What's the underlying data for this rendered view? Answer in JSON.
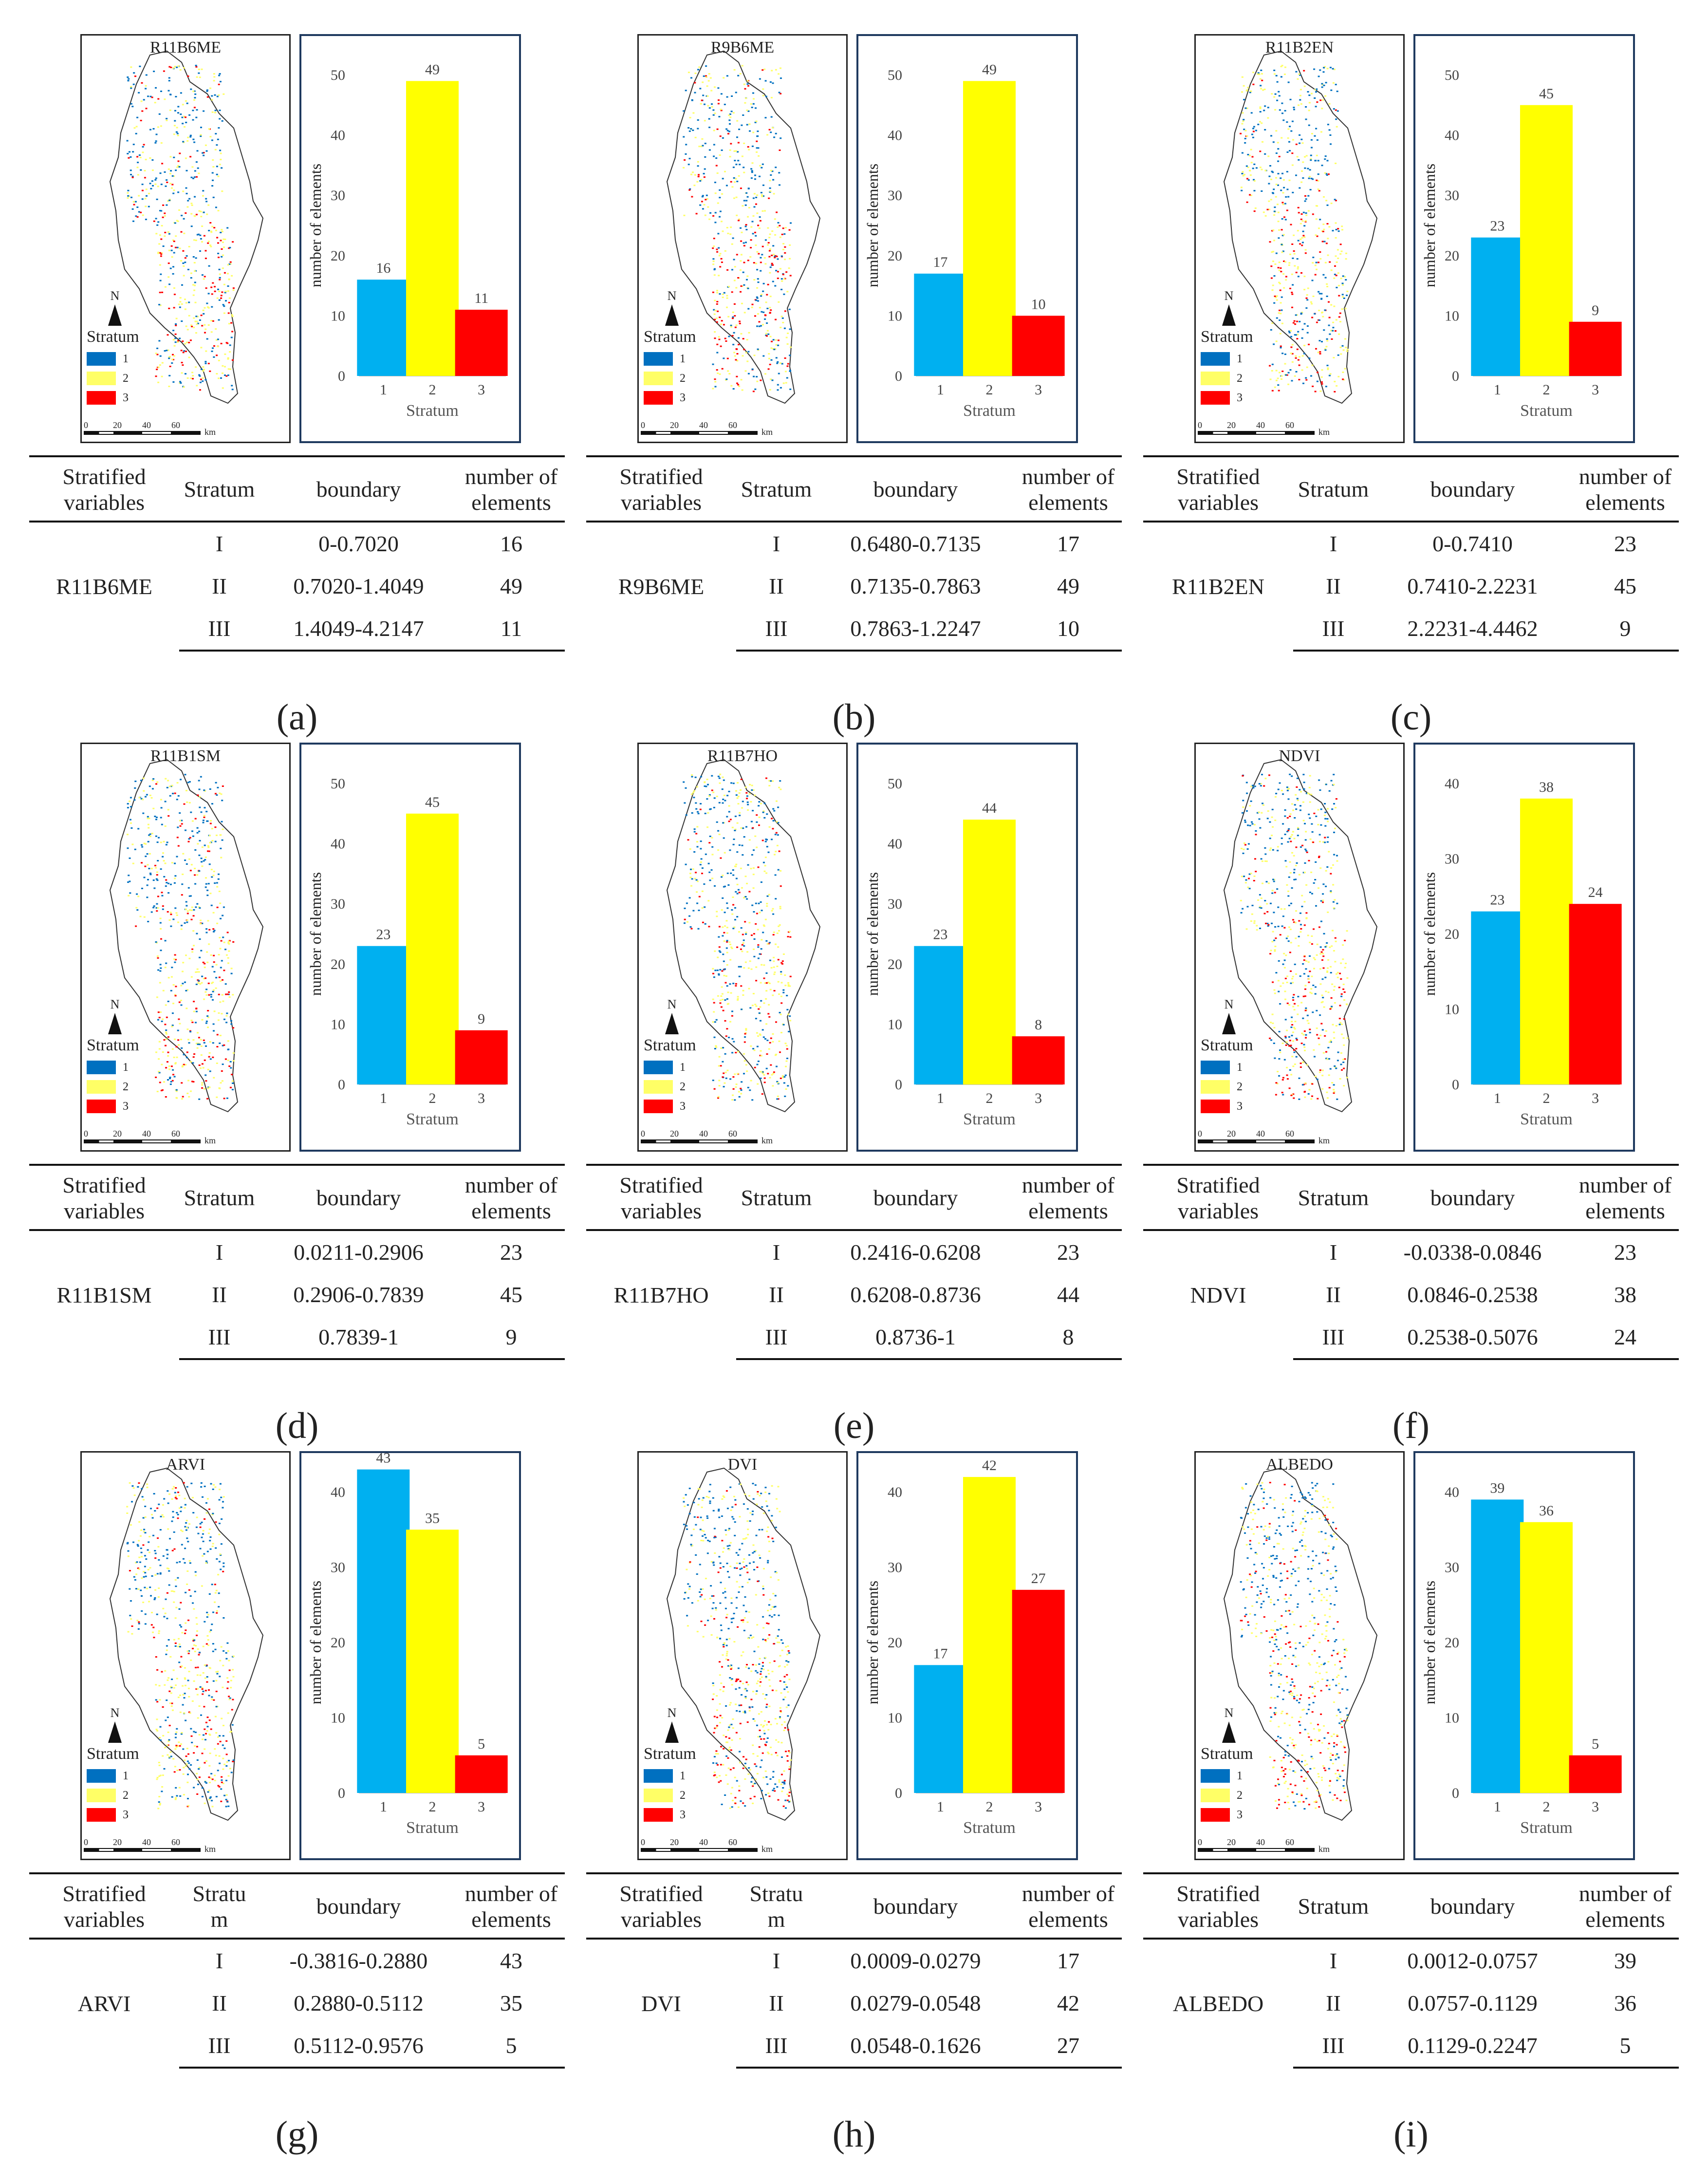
{
  "figure": {
    "colors": {
      "stratum_1": "#00b0f0",
      "stratum_2": "#ffff00",
      "stratum_3": "#ff0000",
      "map_1": "#0070c0",
      "map_2": "#ffff66",
      "map_3": "#ff0000"
    },
    "map_legend": {
      "title": "Stratum",
      "items": [
        "1",
        "2",
        "3"
      ]
    },
    "north_label": "N",
    "scale": {
      "ticks": [
        "0",
        "20",
        "40",
        "60"
      ],
      "unit": "km"
    },
    "table_headers": {
      "stratified_variables": "Stratified variables",
      "stratum": "Stratum",
      "boundary": "boundary",
      "number_of_elements": "number of elements"
    }
  },
  "chart_data": [
    {
      "panel": "(a)",
      "title": "R11B6ME",
      "type": "bar",
      "categories": [
        "1",
        "2",
        "3"
      ],
      "values": [
        16,
        49,
        11
      ],
      "xlabel": "Stratum",
      "ylabel": "number of elements",
      "ylim": [
        0,
        50
      ],
      "yticks": [
        0,
        10,
        20,
        30,
        40,
        50
      ],
      "table": {
        "variable": "R11B6ME",
        "rows": [
          {
            "stratum": "I",
            "boundary": "0-0.7020",
            "count": "16"
          },
          {
            "stratum": "II",
            "boundary": "0.7020-1.4049",
            "count": "49"
          },
          {
            "stratum": "III",
            "boundary": "1.4049-4.2147",
            "count": "11"
          }
        ]
      }
    },
    {
      "panel": "(b)",
      "title": "R9B6ME",
      "type": "bar",
      "categories": [
        "1",
        "2",
        "3"
      ],
      "values": [
        17,
        49,
        10
      ],
      "xlabel": "Stratum",
      "ylabel": "number of elements",
      "ylim": [
        0,
        50
      ],
      "yticks": [
        0,
        10,
        20,
        30,
        40,
        50
      ],
      "table": {
        "variable": "R9B6ME",
        "rows": [
          {
            "stratum": "I",
            "boundary": "0.6480-0.7135",
            "count": "17"
          },
          {
            "stratum": "II",
            "boundary": "0.7135-0.7863",
            "count": "49"
          },
          {
            "stratum": "III",
            "boundary": "0.7863-1.2247",
            "count": "10"
          }
        ]
      }
    },
    {
      "panel": "(c)",
      "title": "R11B2EN",
      "type": "bar",
      "categories": [
        "1",
        "2",
        "3"
      ],
      "values": [
        23,
        45,
        9
      ],
      "xlabel": "Stratum",
      "ylabel": "number of elements",
      "ylim": [
        0,
        50
      ],
      "yticks": [
        0,
        10,
        20,
        30,
        40,
        50
      ],
      "table": {
        "variable": "R11B2EN",
        "rows": [
          {
            "stratum": "I",
            "boundary": "0-0.7410",
            "count": "23"
          },
          {
            "stratum": "II",
            "boundary": "0.7410-2.2231",
            "count": "45"
          },
          {
            "stratum": "III",
            "boundary": "2.2231-4.4462",
            "count": "9"
          }
        ]
      }
    },
    {
      "panel": "(d)",
      "title": "R11B1SM",
      "type": "bar",
      "categories": [
        "1",
        "2",
        "3"
      ],
      "values": [
        23,
        45,
        9
      ],
      "xlabel": "Stratum",
      "ylabel": "number of elements",
      "ylim": [
        0,
        50
      ],
      "yticks": [
        0,
        10,
        20,
        30,
        40,
        50
      ],
      "table": {
        "variable": "R11B1SM",
        "rows": [
          {
            "stratum": "I",
            "boundary": "0.0211-0.2906",
            "count": "23"
          },
          {
            "stratum": "II",
            "boundary": "0.2906-0.7839",
            "count": "45"
          },
          {
            "stratum": "III",
            "boundary": "0.7839-1",
            "count": "9"
          }
        ]
      }
    },
    {
      "panel": "(e)",
      "title": "R11B7HO",
      "type": "bar",
      "categories": [
        "1",
        "2",
        "3"
      ],
      "values": [
        23,
        44,
        8
      ],
      "xlabel": "Stratum",
      "ylabel": "number of elements",
      "ylim": [
        0,
        50
      ],
      "yticks": [
        0,
        10,
        20,
        30,
        40,
        50
      ],
      "table": {
        "variable": "R11B7HO",
        "rows": [
          {
            "stratum": "I",
            "boundary": "0.2416-0.6208",
            "count": "23"
          },
          {
            "stratum": "II",
            "boundary": "0.6208-0.8736",
            "count": "44"
          },
          {
            "stratum": "III",
            "boundary": "0.8736-1",
            "count": "8"
          }
        ]
      }
    },
    {
      "panel": "(f)",
      "title": "NDVI",
      "type": "bar",
      "categories": [
        "1",
        "2",
        "3"
      ],
      "values": [
        23,
        38,
        24
      ],
      "xlabel": "Stratum",
      "ylabel": "number of elements",
      "ylim": [
        0,
        40
      ],
      "yticks": [
        0,
        10,
        20,
        30,
        40
      ],
      "table": {
        "variable": "NDVI",
        "rows": [
          {
            "stratum": "I",
            "boundary": "-0.0338-0.0846",
            "count": "23"
          },
          {
            "stratum": "II",
            "boundary": "0.0846-0.2538",
            "count": "38"
          },
          {
            "stratum": "III",
            "boundary": "0.2538-0.5076",
            "count": "24"
          }
        ]
      }
    },
    {
      "panel": "(g)",
      "title": "ARVI",
      "type": "bar",
      "categories": [
        "1",
        "2",
        "3"
      ],
      "values": [
        43,
        35,
        5
      ],
      "xlabel": "Stratum",
      "ylabel": "number of elements",
      "ylim": [
        0,
        40
      ],
      "yticks": [
        0,
        10,
        20,
        30,
        40
      ],
      "table": {
        "variable": "ARVI",
        "stratum_header": "Stratu m",
        "rows": [
          {
            "stratum": "I",
            "boundary": "-0.3816-0.2880",
            "count": "43"
          },
          {
            "stratum": "II",
            "boundary": "0.2880-0.5112",
            "count": "35"
          },
          {
            "stratum": "III",
            "boundary": "0.5112-0.9576",
            "count": "5"
          }
        ]
      }
    },
    {
      "panel": "(h)",
      "title": "DVI",
      "type": "bar",
      "categories": [
        "1",
        "2",
        "3"
      ],
      "values": [
        17,
        42,
        27
      ],
      "xlabel": "Stratum",
      "ylabel": "number of elements",
      "ylim": [
        0,
        40
      ],
      "yticks": [
        0,
        10,
        20,
        30,
        40
      ],
      "table": {
        "variable": "DVI",
        "stratum_header": "Stratu m",
        "rows": [
          {
            "stratum": "I",
            "boundary": "0.0009-0.0279",
            "count": "17"
          },
          {
            "stratum": "II",
            "boundary": "0.0279-0.0548",
            "count": "42"
          },
          {
            "stratum": "III",
            "boundary": "0.0548-0.1626",
            "count": "27"
          }
        ]
      }
    },
    {
      "panel": "(i)",
      "title": "ALBEDO",
      "type": "bar",
      "categories": [
        "1",
        "2",
        "3"
      ],
      "values": [
        39,
        36,
        5
      ],
      "xlabel": "Stratum",
      "ylabel": "number of elements",
      "ylim": [
        0,
        40
      ],
      "yticks": [
        0,
        10,
        20,
        30,
        40
      ],
      "table": {
        "variable": "ALBEDO",
        "rows": [
          {
            "stratum": "I",
            "boundary": "0.0012-0.0757",
            "count": "39"
          },
          {
            "stratum": "II",
            "boundary": "0.0757-0.1129",
            "count": "36"
          },
          {
            "stratum": "III",
            "boundary": "0.1129-0.2247",
            "count": "5"
          }
        ]
      }
    }
  ]
}
